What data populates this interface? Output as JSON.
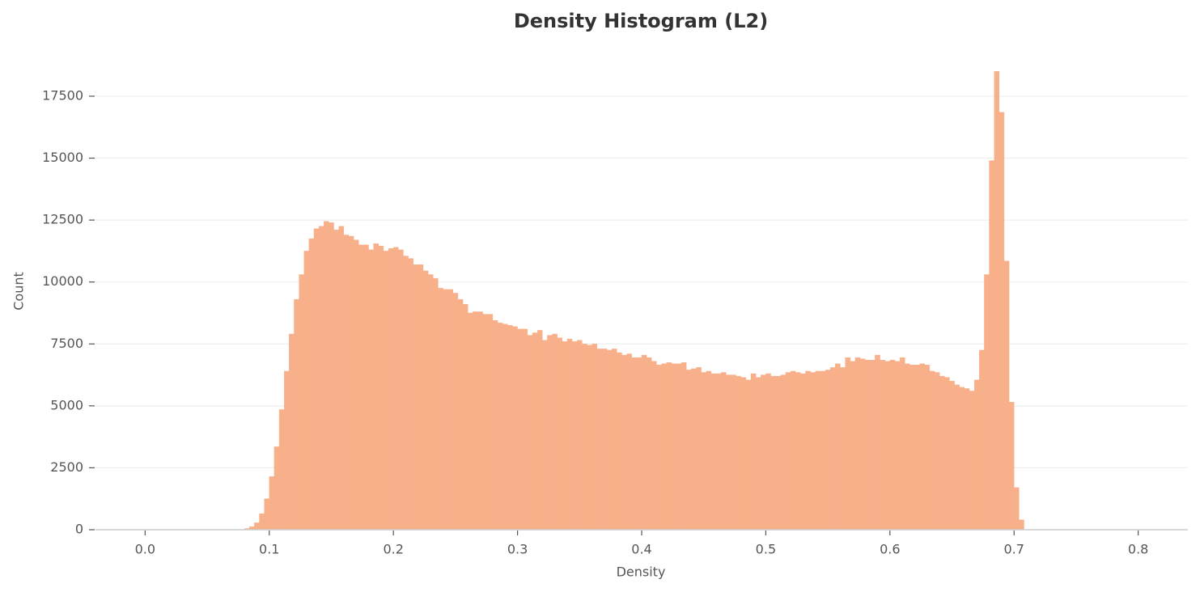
{
  "chart_data": {
    "type": "histogram",
    "title": "Density Histogram (L2)",
    "x_label": "Density",
    "y_label": "Count",
    "color": "#f8b08b",
    "grid": true,
    "bins": [
      0.08,
      0.084,
      0.088,
      0.092,
      0.096,
      0.1,
      0.104,
      0.108,
      0.112,
      0.116,
      0.12,
      0.124,
      0.128,
      0.132,
      0.136,
      0.14,
      0.144,
      0.148,
      0.152,
      0.156,
      0.16,
      0.164,
      0.168,
      0.172,
      0.176,
      0.18,
      0.184,
      0.188,
      0.192,
      0.196,
      0.2,
      0.204,
      0.208,
      0.212,
      0.216,
      0.22,
      0.224,
      0.228,
      0.232,
      0.236,
      0.24,
      0.244,
      0.248,
      0.252,
      0.256,
      0.26,
      0.264,
      0.268,
      0.272,
      0.276,
      0.28,
      0.284,
      0.288,
      0.292,
      0.296,
      0.3,
      0.304,
      0.308,
      0.312,
      0.316,
      0.32,
      0.324,
      0.328,
      0.332,
      0.336,
      0.34,
      0.344,
      0.348,
      0.352,
      0.356,
      0.36,
      0.364,
      0.368,
      0.372,
      0.376,
      0.38,
      0.384,
      0.388,
      0.392,
      0.396,
      0.4,
      0.404,
      0.408,
      0.412,
      0.416,
      0.42,
      0.424,
      0.428,
      0.432,
      0.436,
      0.44,
      0.444,
      0.448,
      0.452,
      0.456,
      0.46,
      0.464,
      0.468,
      0.472,
      0.476,
      0.48,
      0.484,
      0.488,
      0.492,
      0.496,
      0.5,
      0.504,
      0.508,
      0.512,
      0.516,
      0.52,
      0.524,
      0.528,
      0.532,
      0.536,
      0.54,
      0.544,
      0.548,
      0.552,
      0.556,
      0.56,
      0.564,
      0.568,
      0.572,
      0.576,
      0.58,
      0.584,
      0.588,
      0.592,
      0.596,
      0.6,
      0.604,
      0.608,
      0.612,
      0.616,
      0.62,
      0.624,
      0.628,
      0.632,
      0.636,
      0.64,
      0.644,
      0.648,
      0.652,
      0.656,
      0.66,
      0.664,
      0.668,
      0.672,
      0.676,
      0.68,
      0.684,
      0.688,
      0.692,
      0.696,
      0.7,
      0.704,
      0.708
    ],
    "values": [
      50,
      120,
      280,
      650,
      1250,
      2150,
      3350,
      4850,
      6400,
      7900,
      9300,
      10300,
      11250,
      11750,
      12150,
      12250,
      12450,
      12400,
      12100,
      12250,
      11900,
      11850,
      11700,
      11500,
      11500,
      11300,
      11550,
      11450,
      11250,
      11350,
      11400,
      11300,
      11050,
      10950,
      10700,
      10700,
      10450,
      10300,
      10150,
      9750,
      9700,
      9700,
      9550,
      9300,
      9100,
      8750,
      8800,
      8800,
      8700,
      8700,
      8450,
      8350,
      8300,
      8250,
      8200,
      8100,
      8100,
      7850,
      7950,
      8050,
      7650,
      7850,
      7900,
      7750,
      7600,
      7700,
      7600,
      7650,
      7500,
      7450,
      7500,
      7300,
      7300,
      7250,
      7300,
      7150,
      7050,
      7100,
      6950,
      6950,
      7050,
      6950,
      6800,
      6650,
      6700,
      6750,
      6700,
      6700,
      6750,
      6450,
      6500,
      6550,
      6350,
      6400,
      6300,
      6300,
      6350,
      6250,
      6250,
      6200,
      6150,
      6050,
      6300,
      6150,
      6250,
      6300,
      6200,
      6200,
      6250,
      6350,
      6400,
      6350,
      6300,
      6400,
      6350,
      6400,
      6400,
      6450,
      6550,
      6700,
      6550,
      6950,
      6800,
      6950,
      6900,
      6850,
      6850,
      7050,
      6850,
      6800,
      6850,
      6800,
      6950,
      6700,
      6650,
      6650,
      6700,
      6650,
      6400,
      6350,
      6200,
      6150,
      6000,
      5850,
      5750,
      5700,
      5600,
      6050,
      7250,
      10300,
      14900,
      18500,
      16850,
      10850,
      5150,
      1700,
      400,
      50
    ],
    "xlim": [
      -0.04,
      0.84
    ],
    "ylim": [
      0,
      19000
    ],
    "xticks": [
      {
        "value": 0,
        "label": "0.0"
      },
      0.1,
      0.2,
      0.3,
      0.4,
      0.5,
      0.6,
      0.7,
      0.8
    ],
    "yticks": [
      0,
      2500,
      5000,
      7500,
      10000,
      12500,
      15000,
      17500
    ]
  }
}
